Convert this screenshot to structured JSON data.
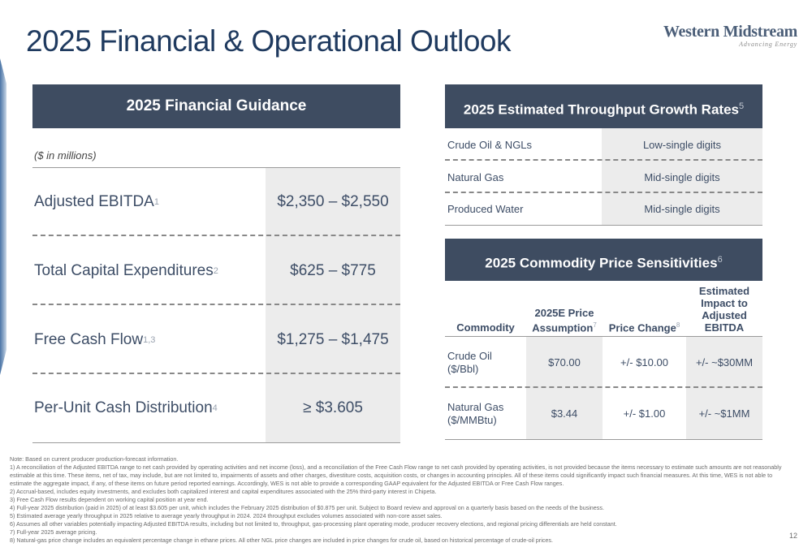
{
  "title": "2025 Financial & Operational Outlook",
  "logo": {
    "name": "Western Midstream",
    "tagline": "Advancing Energy"
  },
  "financial_guidance": {
    "header": "2025 Financial Guidance",
    "units": "($ in millions)",
    "rows": [
      {
        "label": "Adjusted EBITDA",
        "sup": "1",
        "value": "$2,350 – $2,550"
      },
      {
        "label": "Total Capital Expenditures",
        "sup": "2",
        "value": "$625 – $775"
      },
      {
        "label": "Free Cash Flow",
        "sup": "1,3",
        "value": "$1,275 – $1,475"
      },
      {
        "label": "Per-Unit Cash Distribution",
        "sup": "4",
        "value": "≥ $3.605"
      }
    ]
  },
  "throughput": {
    "header": "2025 Estimated Throughput Growth Rates",
    "header_sup": "5",
    "rows": [
      {
        "label": "Crude Oil & NGLs",
        "value": "Low-single digits"
      },
      {
        "label": "Natural Gas",
        "value": "Mid-single digits"
      },
      {
        "label": "Produced Water",
        "value": "Mid-single digits"
      }
    ]
  },
  "sensitivities": {
    "header": "2025 Commodity Price Sensitivities",
    "header_sup": "6",
    "columns": [
      {
        "label": "Commodity",
        "sup": ""
      },
      {
        "label": "2025E Price Assumption",
        "sup": "7"
      },
      {
        "label": "Price Change",
        "sup": "8"
      },
      {
        "label": "Estimated Impact to Adjusted EBITDA",
        "sup": ""
      }
    ],
    "rows": [
      {
        "commodity": "Crude Oil",
        "unit": "($/Bbl)",
        "price": "$70.00",
        "change": "+/- $10.00",
        "impact": "+/- ~$30MM"
      },
      {
        "commodity": "Natural Gas",
        "unit": "($/MMBtu)",
        "price": "$3.44",
        "change": "+/- $1.00",
        "impact": "+/- ~$1MM"
      }
    ]
  },
  "notes": [
    "Note: Based on current producer production-forecast information.",
    "1) A reconciliation of the Adjusted EBITDA range to net cash provided by operating activities and net income (loss), and a reconciliation of the Free Cash Flow range to net cash provided by operating activities, is not provided because the items necessary to estimate such amounts are not reasonably estimable at this time. These items, net of tax, may include, but are not limited to, impairments of assets and other charges, divestiture costs, acquisition costs, or changes in accounting principles. All of these items could significantly impact such financial measures. At this time, WES is not able to estimate the aggregate impact, if any, of these items on future period reported earnings. Accordingly, WES is not able to provide a corresponding GAAP equivalent for the Adjusted EBITDA or Free Cash Flow ranges.",
    "2) Accrual-based, includes equity investments, and excludes both capitalized interest and capital expenditures associated with the 25% third-party interest in Chipeta.",
    "3) Free Cash Flow results dependent on working capital position at year end.",
    "4) Full-year 2025 distribution (paid in 2025) of at least $3.605 per unit, which includes the February 2025 distribution of $0.875 per unit. Subject to Board review and approval on a quarterly basis based on the needs of the business.",
    "5) Estimated average yearly throughput in 2025 relative to average yearly throughput in 2024. 2024 throughput excludes volumes associated with non-core asset sales.",
    "6) Assumes all other variables potentially impacting Adjusted EBITDA results, including but not limited to, throughput, gas-processing plant operating mode, producer recovery elections, and regional pricing differentials are held constant.",
    "7) Full-year 2025 average pricing.",
    "8) Natural-gas price change includes an equivalent percentage change in ethane prices. All other NGL price changes are included in price changes for crude oil, based on historical percentage of crude-oil prices."
  ],
  "page_number": "12"
}
